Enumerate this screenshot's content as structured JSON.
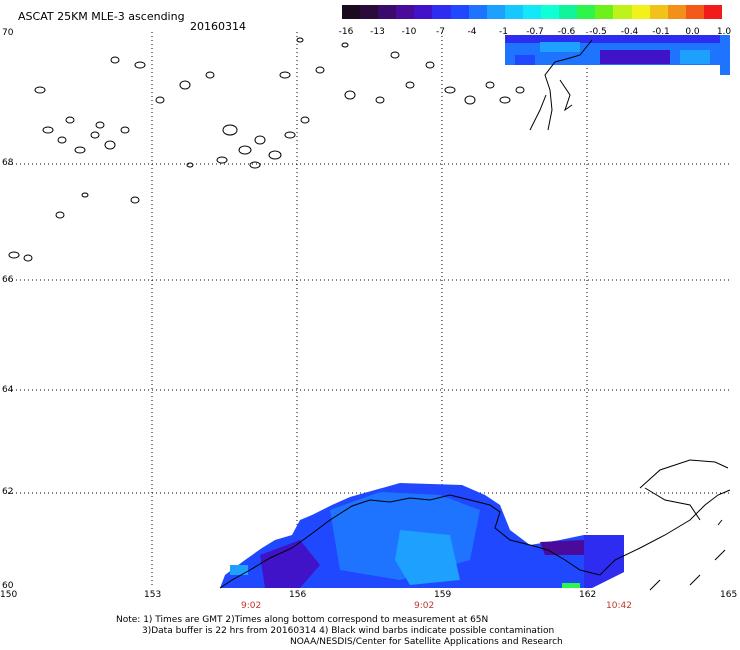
{
  "header": {
    "title": "ASCAT 25KM MLE-3 ascending",
    "date": "20160314"
  },
  "colorbar": {
    "labels": [
      "-16",
      "-13",
      "-10",
      "-7",
      "-4",
      "-1",
      "-0.7",
      "-0.6",
      "-0.5",
      "-0.4",
      "-0.1",
      "0.0",
      "1.0"
    ],
    "colors": [
      "#1a0a1e",
      "#2b0b3a",
      "#3a0b6a",
      "#4a0b9a",
      "#4013c8",
      "#2e2cf0",
      "#1f48ff",
      "#1e74ff",
      "#1ea0ff",
      "#17c7ff",
      "#12e8f8",
      "#10ffd6",
      "#10f59b",
      "#2df54a",
      "#6cf21a",
      "#bdf21a",
      "#f2f21a",
      "#f2c21a",
      "#f2901a",
      "#f25a1a",
      "#f21a1a"
    ]
  },
  "map": {
    "lat_labels": [
      "70",
      "68",
      "66",
      "64",
      "62",
      "60"
    ],
    "lon_labels": [
      "150",
      "153",
      "156",
      "159",
      "162",
      "165"
    ],
    "time_labels": [
      "9:02",
      "9:02",
      "10:42"
    ]
  },
  "notes": {
    "line1": "Note: 1) Times are GMT 2)Times along bottom correspond to measurement at 65N",
    "line2": "3)Data buffer is 22 hrs from 20160314 4) Black wind barbs indicate possible contamination",
    "line3": "NOAA/NESDIS/Center for Satellite Applications and Research"
  }
}
